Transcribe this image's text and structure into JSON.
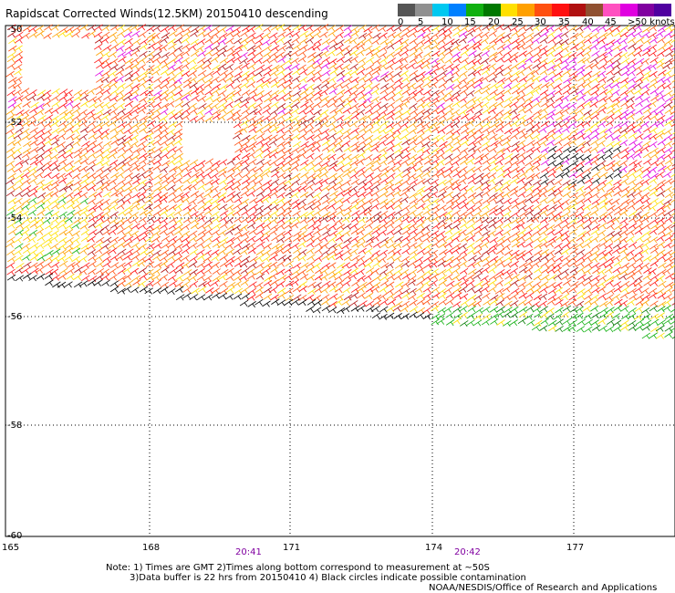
{
  "title": "Rapidscat Corrected Winds(12.5KM) 20150410 descending",
  "legend": {
    "colors": [
      "#555555",
      "#909090",
      "#00c8f0",
      "#0080ff",
      "#10b010",
      "#007800",
      "#ffe000",
      "#ffa000",
      "#ff5010",
      "#ff1010",
      "#b01010",
      "#905030",
      "#ff50c0",
      "#e000e0",
      "#8000a0",
      "#5000a0"
    ],
    "labels": [
      "0",
      "5",
      "10",
      "15",
      "20",
      "25",
      "30",
      "35",
      "40",
      "45",
      ">50 knots"
    ]
  },
  "map": {
    "lat_labels": [
      "-50",
      "-52",
      "-54",
      "-56",
      "-58",
      "-60"
    ],
    "lon_labels": [
      "165",
      "168",
      "171",
      "174",
      "177"
    ],
    "time_labels": [
      "20:41",
      "20:42"
    ]
  },
  "notes": {
    "line1": "Note: 1) Times are GMT 2)Times along bottom correspond to measurement at ~50S",
    "line2": "3)Data buffer is 22 hrs from 20150410 4) Black circles indicate possible contamination",
    "line3": "NOAA/NESDIS/Office of Research and Applications"
  }
}
